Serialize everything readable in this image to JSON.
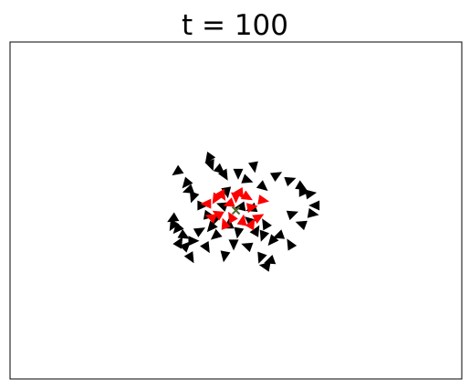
{
  "chart_data": {
    "type": "scatter",
    "title": "t = 100",
    "xlabel": "",
    "ylabel": "",
    "xlim": [
      -1,
      1
    ],
    "ylim": [
      -1,
      1
    ],
    "grid": false,
    "ticks_visible": false,
    "marker": "triangle",
    "series": [
      {
        "color": "#000000",
        "points": [
          {
            "x": -0.26,
            "y": 0.23,
            "angle": 215
          },
          {
            "x": -0.22,
            "y": 0.16,
            "angle": 230
          },
          {
            "x": -0.21,
            "y": 0.12,
            "angle": 200
          },
          {
            "x": -0.19,
            "y": 0.08,
            "angle": 250
          },
          {
            "x": -0.12,
            "y": 0.31,
            "angle": 235
          },
          {
            "x": -0.11,
            "y": 0.27,
            "angle": 290
          },
          {
            "x": -0.07,
            "y": 0.24,
            "angle": 320
          },
          {
            "x": -0.05,
            "y": 0.21,
            "angle": 300
          },
          {
            "x": 0.01,
            "y": 0.22,
            "angle": 270
          },
          {
            "x": 0.05,
            "y": 0.18,
            "angle": 340
          },
          {
            "x": 0.08,
            "y": 0.26,
            "angle": 280
          },
          {
            "x": 0.12,
            "y": 0.14,
            "angle": 320
          },
          {
            "x": 0.18,
            "y": 0.21,
            "angle": 30
          },
          {
            "x": 0.24,
            "y": 0.18,
            "angle": 20
          },
          {
            "x": 0.29,
            "y": 0.14,
            "angle": 330
          },
          {
            "x": 0.3,
            "y": 0.11,
            "angle": 0
          },
          {
            "x": 0.33,
            "y": 0.1,
            "angle": 10
          },
          {
            "x": 0.35,
            "y": 0.03,
            "angle": 180
          },
          {
            "x": 0.34,
            "y": -0.02,
            "angle": 350
          },
          {
            "x": 0.25,
            "y": -0.02,
            "angle": 20
          },
          {
            "x": 0.29,
            "y": -0.08,
            "angle": 160
          },
          {
            "x": 0.24,
            "y": -0.2,
            "angle": 120
          },
          {
            "x": 0.19,
            "y": -0.15,
            "angle": 200
          },
          {
            "x": 0.16,
            "y": -0.18,
            "angle": 230
          },
          {
            "x": 0.12,
            "y": -0.15,
            "angle": 250
          },
          {
            "x": 0.09,
            "y": -0.12,
            "angle": 60
          },
          {
            "x": 0.13,
            "y": -0.08,
            "angle": 120
          },
          {
            "x": 0.15,
            "y": -0.3,
            "angle": 200
          },
          {
            "x": 0.13,
            "y": -0.33,
            "angle": 170
          },
          {
            "x": 0.11,
            "y": -0.28,
            "angle": 250
          },
          {
            "x": 0.05,
            "y": -0.21,
            "angle": 160
          },
          {
            "x": -0.01,
            "y": -0.2,
            "angle": 270
          },
          {
            "x": 0.01,
            "y": -0.13,
            "angle": 260
          },
          {
            "x": -0.05,
            "y": -0.27,
            "angle": 260
          },
          {
            "x": -0.09,
            "y": -0.15,
            "angle": 220
          },
          {
            "x": -0.13,
            "y": -0.22,
            "angle": 300
          },
          {
            "x": -0.11,
            "y": -0.1,
            "angle": 230
          },
          {
            "x": -0.16,
            "y": -0.12,
            "angle": 30
          },
          {
            "x": -0.19,
            "y": -0.18,
            "angle": 0
          },
          {
            "x": -0.2,
            "y": -0.28,
            "angle": 300
          },
          {
            "x": -0.22,
            "y": -0.21,
            "angle": 45
          },
          {
            "x": -0.23,
            "y": -0.15,
            "angle": 330
          },
          {
            "x": -0.25,
            "y": -0.19,
            "angle": 60
          },
          {
            "x": -0.26,
            "y": -0.11,
            "angle": 230
          },
          {
            "x": -0.28,
            "y": -0.09,
            "angle": 240
          },
          {
            "x": -0.28,
            "y": -0.05,
            "angle": 210
          },
          {
            "x": -0.15,
            "y": 0.03,
            "angle": 0
          },
          {
            "x": -0.12,
            "y": -0.03,
            "angle": 350
          },
          {
            "x": -0.09,
            "y": -0.05,
            "angle": 20
          },
          {
            "x": -0.04,
            "y": 0.11,
            "angle": 280
          },
          {
            "x": 0.02,
            "y": 0.02,
            "angle": 190
          },
          {
            "x": 0.07,
            "y": 0.01,
            "angle": 200
          },
          {
            "x": 0.06,
            "y": -0.06,
            "angle": 140
          },
          {
            "x": -0.03,
            "y": -0.08,
            "angle": 90
          },
          {
            "x": -0.06,
            "y": 0.03,
            "angle": 160
          }
        ]
      },
      {
        "color": "#ff0000",
        "points": [
          {
            "x": -0.13,
            "y": 0.04,
            "angle": 180
          },
          {
            "x": -0.09,
            "y": 0.07,
            "angle": 240
          },
          {
            "x": -0.08,
            "y": -0.02,
            "angle": 150
          },
          {
            "x": -0.06,
            "y": 0.09,
            "angle": 300
          },
          {
            "x": -0.03,
            "y": 0.04,
            "angle": 200
          },
          {
            "x": -0.02,
            "y": -0.04,
            "angle": 120
          },
          {
            "x": 0.0,
            "y": 0.08,
            "angle": 270
          },
          {
            "x": 0.02,
            "y": 0.1,
            "angle": 300
          },
          {
            "x": 0.03,
            "y": -0.06,
            "angle": 80
          },
          {
            "x": 0.05,
            "y": 0.08,
            "angle": 330
          },
          {
            "x": 0.07,
            "y": 0.02,
            "angle": 10
          },
          {
            "x": 0.1,
            "y": -0.04,
            "angle": 30
          },
          {
            "x": 0.07,
            "y": -0.08,
            "angle": 60
          },
          {
            "x": -0.05,
            "y": -0.08,
            "angle": 110
          },
          {
            "x": 0.12,
            "y": 0.06,
            "angle": 350
          },
          {
            "x": -0.11,
            "y": -0.04,
            "angle": 160
          }
        ]
      }
    ],
    "markers": [
      {
        "x": 0.0,
        "y": 0.0,
        "color": "#556b2f",
        "symbol": "x"
      }
    ]
  }
}
